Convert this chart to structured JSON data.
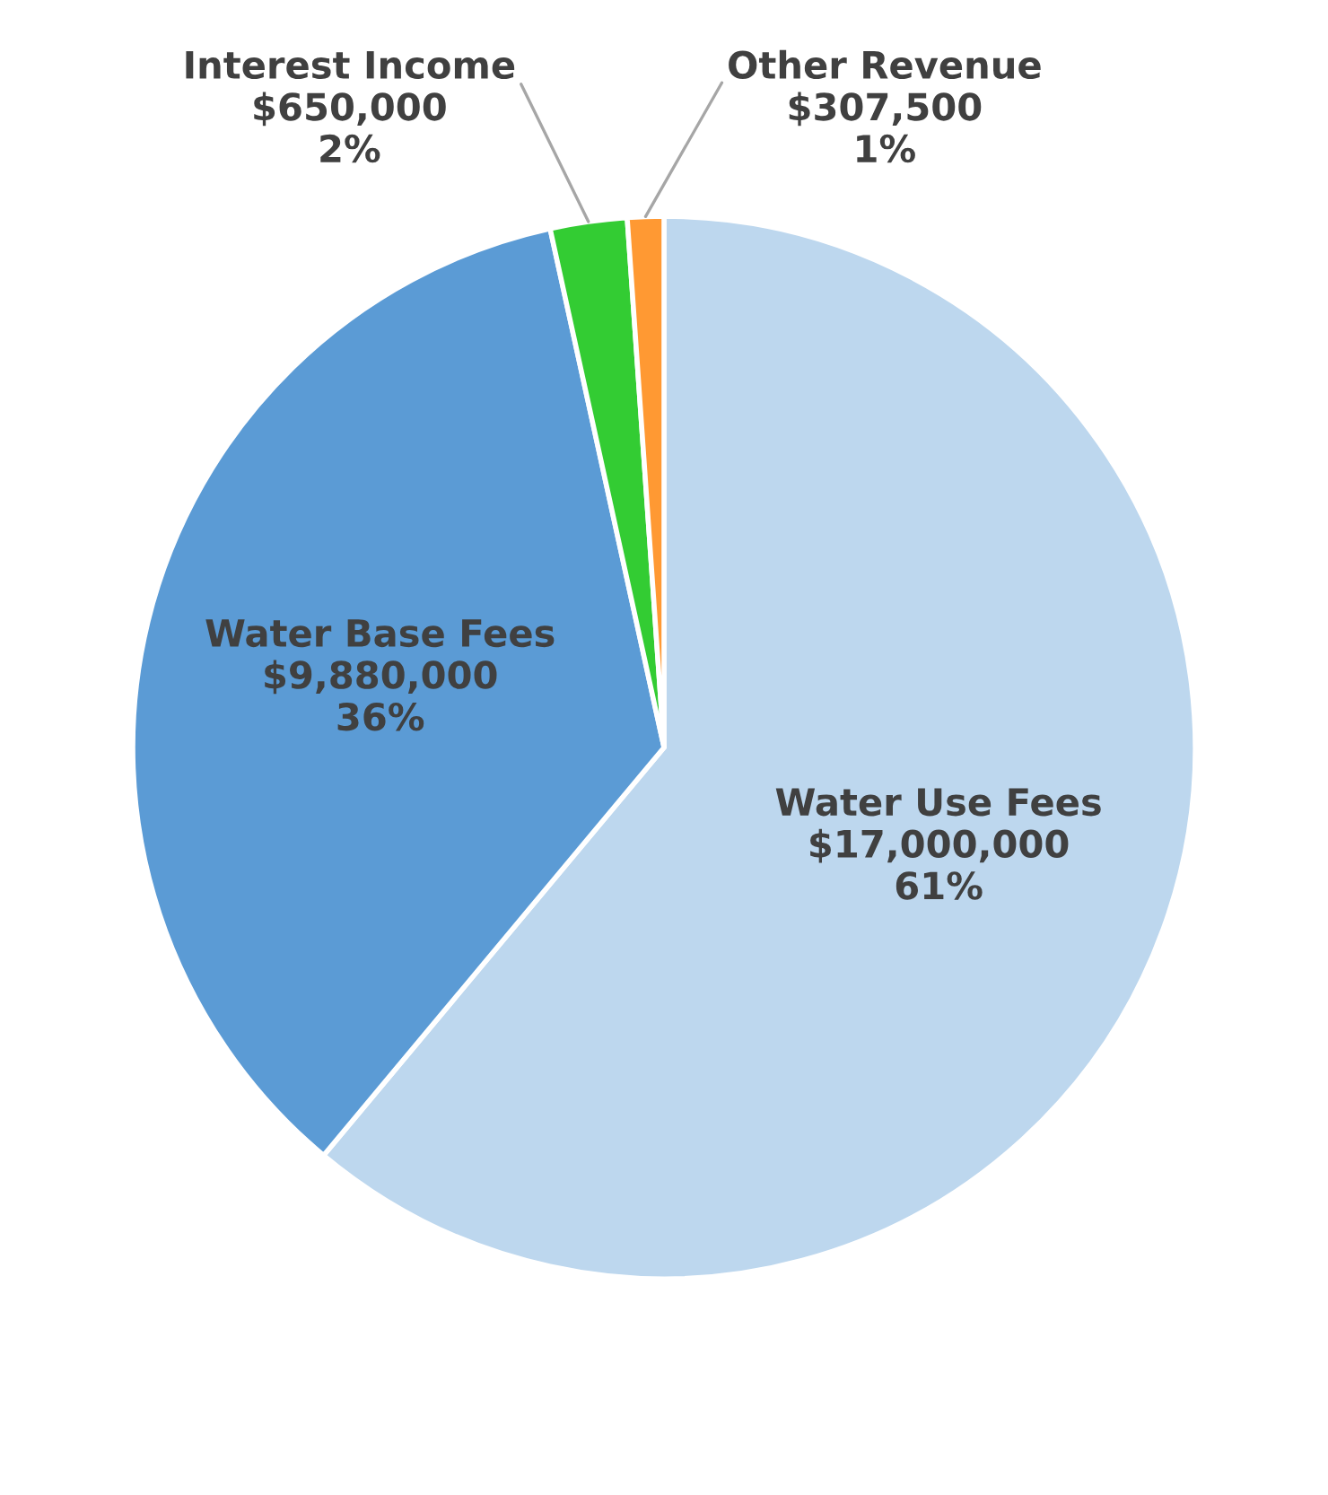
{
  "chart_data": {
    "type": "pie",
    "categories": [
      "Water Use Fees",
      "Water Base Fees",
      "Interest Income",
      "Other Revenue"
    ],
    "values": [
      17000000,
      9880000,
      650000,
      307500
    ],
    "colors": [
      "#bdd7ee",
      "#5b9bd5",
      "#33cc33",
      "#ff9933"
    ],
    "value_labels": [
      "$17,000,000\n61%",
      "$9,880,000\n36%",
      "$650,000\n2%",
      "$307,500\n1%"
    ]
  }
}
